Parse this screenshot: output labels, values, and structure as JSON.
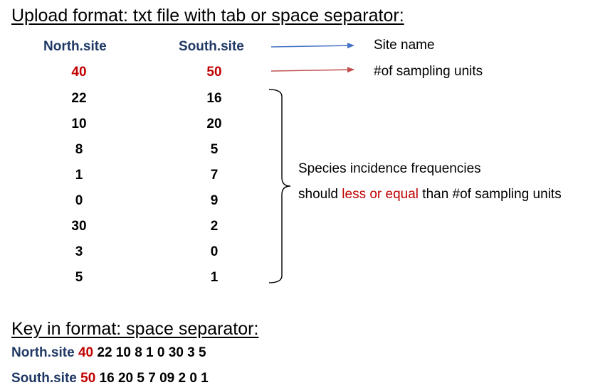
{
  "upload": {
    "heading": "Upload format: txt file with tab or space separator:",
    "columns": [
      {
        "name": "North.site",
        "units": "40",
        "frequencies": [
          "22",
          "10",
          "8",
          "1",
          "0",
          "30",
          "3",
          "5"
        ]
      },
      {
        "name": "South.site",
        "units": "50",
        "frequencies": [
          "16",
          "20",
          "5",
          "7",
          "9",
          "2",
          "0",
          "1"
        ]
      }
    ],
    "annotations": {
      "site_name": "Site name",
      "sampling_units": "#of sampling units",
      "freq_line1": "Species incidence frequencies",
      "freq_line2_pre": "should ",
      "freq_line2_red": "less or equal",
      "freq_line2_post": " than #of sampling units"
    }
  },
  "key_in": {
    "heading": "Key in format: space separator:",
    "lines": [
      {
        "name": "North.site",
        "units": "40",
        "rest": "22 10 8 1 0 30 3 5"
      },
      {
        "name": "South.site",
        "units": "50",
        "rest": "16 20 5 7 09 2 0 1"
      }
    ]
  },
  "colors": {
    "navy": "#1f3864",
    "red": "#c00000",
    "blue_arrow": "#4472c4",
    "red_arrow": "#c0504d"
  }
}
